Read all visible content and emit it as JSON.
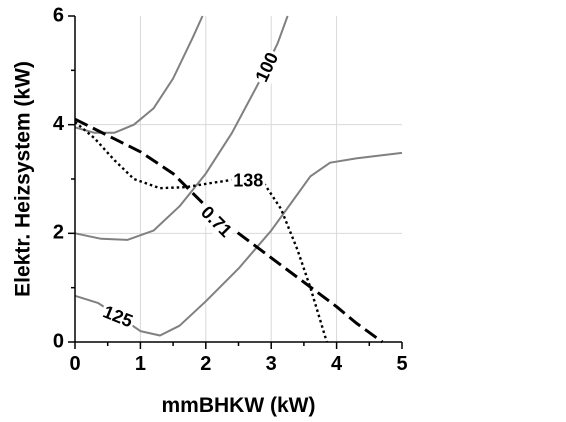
{
  "chart_data": {
    "type": "line",
    "xlabel": "mmBHKW (kW)",
    "ylabel": "Elektr. Heizsystem (kW)",
    "xlim": [
      0,
      5
    ],
    "ylim": [
      0,
      6
    ],
    "x_ticks": [
      "0",
      "1",
      "2",
      "3",
      "4",
      "5"
    ],
    "y_ticks": [
      "0",
      "2",
      "4",
      "6"
    ],
    "grid": true,
    "series": [
      {
        "name": "100",
        "style": "solid",
        "color": "#808080",
        "points": [
          [
            0,
            3.95
          ],
          [
            0.3,
            3.85
          ],
          [
            0.6,
            3.85
          ],
          [
            0.9,
            4.0
          ],
          [
            1.2,
            4.3
          ],
          [
            1.5,
            4.85
          ],
          [
            1.8,
            5.6
          ],
          [
            1.95,
            6.0
          ]
        ]
      },
      {
        "name": "100",
        "style": "solid",
        "color": "#808080",
        "points": [
          [
            0,
            2.0
          ],
          [
            0.4,
            1.9
          ],
          [
            0.8,
            1.88
          ],
          [
            1.2,
            2.05
          ],
          [
            1.6,
            2.5
          ],
          [
            2.0,
            3.1
          ],
          [
            2.4,
            3.85
          ],
          [
            2.8,
            4.75
          ],
          [
            3.1,
            5.5
          ],
          [
            3.25,
            6.0
          ]
        ]
      },
      {
        "name": "125",
        "style": "solid",
        "color": "#808080",
        "points": [
          [
            0,
            0.85
          ],
          [
            0.35,
            0.72
          ],
          [
            0.7,
            0.45
          ],
          [
            1.0,
            0.2
          ],
          [
            1.3,
            0.12
          ],
          [
            1.6,
            0.3
          ],
          [
            2.0,
            0.75
          ],
          [
            2.5,
            1.35
          ],
          [
            3.0,
            2.05
          ],
          [
            3.3,
            2.55
          ],
          [
            3.6,
            3.05
          ],
          [
            3.9,
            3.3
          ],
          [
            4.3,
            3.38
          ],
          [
            5.0,
            3.48
          ]
        ]
      },
      {
        "name": "0.71",
        "style": "dashed",
        "color": "#000000",
        "points": [
          [
            0,
            4.1
          ],
          [
            0.5,
            3.8
          ],
          [
            1.0,
            3.5
          ],
          [
            1.5,
            3.1
          ],
          [
            2.0,
            2.5
          ],
          [
            2.5,
            2.0
          ],
          [
            3.0,
            1.55
          ],
          [
            3.5,
            1.1
          ],
          [
            4.0,
            0.65
          ],
          [
            4.3,
            0.35
          ],
          [
            4.7,
            0.0
          ]
        ]
      },
      {
        "name": "138",
        "style": "dotted",
        "color": "#000000",
        "points": [
          [
            0,
            4.05
          ],
          [
            0.3,
            3.75
          ],
          [
            0.6,
            3.35
          ],
          [
            0.9,
            3.0
          ],
          [
            1.3,
            2.83
          ],
          [
            1.7,
            2.85
          ],
          [
            2.1,
            2.93
          ],
          [
            2.5,
            3.0
          ],
          [
            2.9,
            2.9
          ],
          [
            3.15,
            2.45
          ],
          [
            3.4,
            1.7
          ],
          [
            3.6,
            1.0
          ],
          [
            3.8,
            0.2
          ],
          [
            3.85,
            0.0
          ]
        ]
      }
    ],
    "labels": [
      {
        "text": "100",
        "x": 2.95,
        "y": 5.05,
        "rotate": -65
      },
      {
        "text": "138",
        "x": 2.65,
        "y": 2.95,
        "rotate": 0
      },
      {
        "text": "0.71",
        "x": 2.15,
        "y": 2.2,
        "rotate": 45
      },
      {
        "text": "125",
        "x": 0.65,
        "y": 0.45,
        "rotate": 22
      }
    ]
  }
}
